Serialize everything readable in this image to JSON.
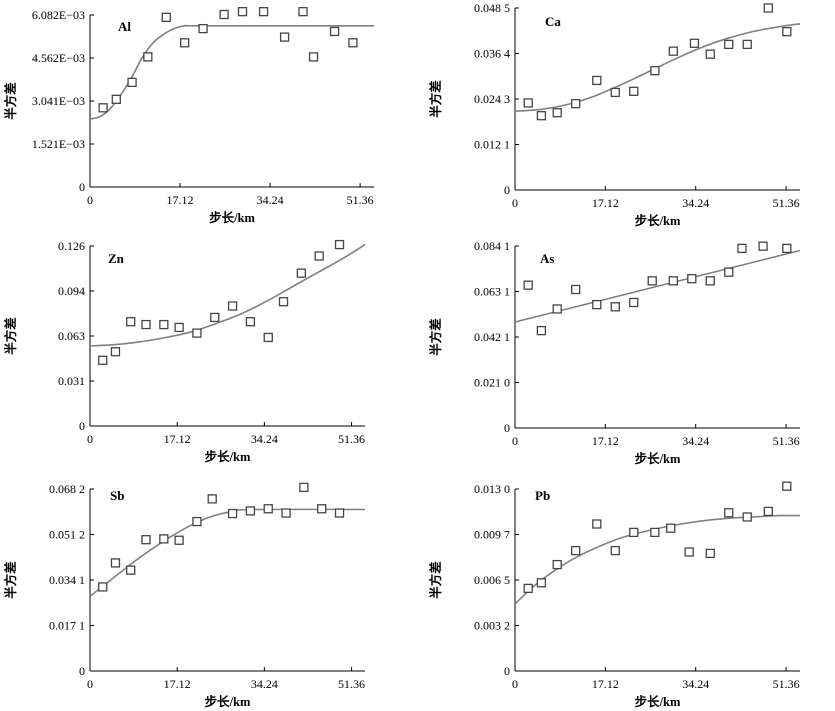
{
  "chart_data": [
    {
      "type": "scatter",
      "label": "Al",
      "xlabel": "步长/km",
      "ylabel": "半方差",
      "xticks": [
        "0",
        "17.12",
        "34.24",
        "51.36"
      ],
      "yticks": [
        "0",
        "1.521E−03",
        "3.041E−03",
        "4.562E−03",
        "6.082E−03"
      ],
      "xlim": [
        0,
        54
      ],
      "ylim": [
        0,
        0.006082
      ],
      "points": [
        [
          2.5,
          0.0028
        ],
        [
          5,
          0.0031
        ],
        [
          8,
          0.0037
        ],
        [
          11,
          0.0046
        ],
        [
          14.5,
          0.006
        ],
        [
          18,
          0.0051
        ],
        [
          21.5,
          0.0056
        ],
        [
          25.5,
          0.0061
        ],
        [
          29,
          0.0062
        ],
        [
          33,
          0.0062
        ],
        [
          37,
          0.0053
        ],
        [
          40.5,
          0.0062
        ],
        [
          42.5,
          0.0046
        ],
        [
          46.5,
          0.0055
        ],
        [
          50,
          0.0051
        ]
      ],
      "fit": [
        [
          0,
          0.0024
        ],
        [
          2,
          0.0025
        ],
        [
          4,
          0.0028
        ],
        [
          6,
          0.0033
        ],
        [
          8,
          0.0039
        ],
        [
          10,
          0.0046
        ],
        [
          12,
          0.0051
        ],
        [
          14,
          0.0054
        ],
        [
          16,
          0.0056
        ],
        [
          18,
          0.0057
        ],
        [
          22,
          0.0057
        ],
        [
          54,
          0.0057
        ]
      ]
    },
    {
      "type": "scatter",
      "label": "Ca",
      "xlabel": "步长/km",
      "ylabel": "半方差",
      "xticks": [
        "0",
        "17.12",
        "34.24",
        "51.36"
      ],
      "yticks": [
        "0",
        "0.012 1",
        "0.024 3",
        "0.036 4",
        "0.048 5"
      ],
      "xlim": [
        0,
        54
      ],
      "ylim": [
        0,
        0.0485
      ],
      "points": [
        [
          2.5,
          0.0232
        ],
        [
          5,
          0.0198
        ],
        [
          8,
          0.0206
        ],
        [
          11.5,
          0.023
        ],
        [
          15.5,
          0.0292
        ],
        [
          19,
          0.026
        ],
        [
          22.5,
          0.0263
        ],
        [
          26.5,
          0.0318
        ],
        [
          30,
          0.037
        ],
        [
          34,
          0.0391
        ],
        [
          37,
          0.0362
        ],
        [
          40.5,
          0.0388
        ],
        [
          44,
          0.0388
        ],
        [
          48,
          0.0485
        ],
        [
          51.5,
          0.0422
        ]
      ],
      "fit": [
        [
          0,
          0.021
        ],
        [
          5,
          0.0215
        ],
        [
          10,
          0.0228
        ],
        [
          15,
          0.025
        ],
        [
          20,
          0.028
        ],
        [
          25,
          0.0313
        ],
        [
          30,
          0.0347
        ],
        [
          35,
          0.0378
        ],
        [
          40,
          0.0403
        ],
        [
          45,
          0.0422
        ],
        [
          50,
          0.0435
        ],
        [
          54,
          0.0443
        ]
      ]
    },
    {
      "type": "scatter",
      "label": "Zn",
      "xlabel": "步长/km",
      "ylabel": "半方差",
      "xticks": [
        "0",
        "17.12",
        "34.24",
        "51.36"
      ],
      "yticks": [
        "0",
        "0.031",
        "0.063",
        "0.094",
        "0.126"
      ],
      "xlim": [
        0,
        54
      ],
      "ylim": [
        0,
        0.126
      ],
      "points": [
        [
          2.5,
          0.046
        ],
        [
          5,
          0.052
        ],
        [
          8,
          0.073
        ],
        [
          11,
          0.071
        ],
        [
          14.5,
          0.071
        ],
        [
          17.5,
          0.069
        ],
        [
          21,
          0.065
        ],
        [
          24.5,
          0.076
        ],
        [
          28,
          0.084
        ],
        [
          31.5,
          0.073
        ],
        [
          35,
          0.062
        ],
        [
          38,
          0.087
        ],
        [
          41.5,
          0.107
        ],
        [
          45,
          0.119
        ],
        [
          49,
          0.127
        ]
      ],
      "fit": [
        [
          0,
          0.056
        ],
        [
          5,
          0.057
        ],
        [
          10,
          0.059
        ],
        [
          15,
          0.062
        ],
        [
          20,
          0.066
        ],
        [
          25,
          0.072
        ],
        [
          30,
          0.079
        ],
        [
          35,
          0.088
        ],
        [
          40,
          0.098
        ],
        [
          45,
          0.108
        ],
        [
          50,
          0.118
        ],
        [
          54,
          0.127
        ]
      ]
    },
    {
      "type": "scatter",
      "label": "As",
      "xlabel": "步长/km",
      "ylabel": "半方差",
      "xticks": [
        "0",
        "17.12",
        "34.24",
        "51.36"
      ],
      "yticks": [
        "0",
        "0.021 0",
        "0.042 1",
        "0.063 1",
        "0.084 1"
      ],
      "xlim": [
        0,
        54
      ],
      "ylim": [
        0,
        0.0841
      ],
      "points": [
        [
          2.5,
          0.066
        ],
        [
          5,
          0.045
        ],
        [
          8,
          0.055
        ],
        [
          11.5,
          0.064
        ],
        [
          15.5,
          0.057
        ],
        [
          19,
          0.056
        ],
        [
          22.5,
          0.058
        ],
        [
          26,
          0.068
        ],
        [
          30,
          0.068
        ],
        [
          33.5,
          0.069
        ],
        [
          37,
          0.068
        ],
        [
          40.5,
          0.072
        ],
        [
          43,
          0.083
        ],
        [
          47,
          0.084
        ],
        [
          51.5,
          0.083
        ]
      ],
      "fit": [
        [
          0,
          0.049
        ],
        [
          54,
          0.082
        ]
      ]
    },
    {
      "type": "scatter",
      "label": "Sb",
      "xlabel": "步长/km",
      "ylabel": "半方差",
      "xticks": [
        "0",
        "17.12",
        "34.24",
        "51.36"
      ],
      "yticks": [
        "0",
        "0.017 1",
        "0.034 1",
        "0.051 2",
        "0.068 2"
      ],
      "xlim": [
        0,
        54
      ],
      "ylim": [
        0,
        0.0682
      ],
      "points": [
        [
          2.5,
          0.0315
        ],
        [
          5,
          0.0405
        ],
        [
          8,
          0.0378
        ],
        [
          11,
          0.0492
        ],
        [
          14.5,
          0.0495
        ],
        [
          17.5,
          0.049
        ],
        [
          21,
          0.056
        ],
        [
          24,
          0.0645
        ],
        [
          28,
          0.059
        ],
        [
          31.5,
          0.06
        ],
        [
          35,
          0.0608
        ],
        [
          38.5,
          0.0592
        ],
        [
          42,
          0.0688
        ],
        [
          45.5,
          0.0608
        ],
        [
          49,
          0.0592
        ]
      ],
      "fit": [
        [
          0,
          0.028
        ],
        [
          4,
          0.034
        ],
        [
          8,
          0.04
        ],
        [
          12,
          0.0455
        ],
        [
          16,
          0.0505
        ],
        [
          20,
          0.0548
        ],
        [
          24,
          0.058
        ],
        [
          28,
          0.0598
        ],
        [
          32,
          0.0605
        ],
        [
          54,
          0.0605
        ]
      ]
    },
    {
      "type": "scatter",
      "label": "Pb",
      "xlabel": "步长/km",
      "ylabel": "半方差",
      "xticks": [
        "0",
        "17.12",
        "34.24",
        "51.36"
      ],
      "yticks": [
        "0",
        "0.003 2",
        "0.006 5",
        "0.009 7",
        "0.013 0"
      ],
      "xlim": [
        0,
        54
      ],
      "ylim": [
        0,
        0.013
      ],
      "points": [
        [
          2.5,
          0.0059
        ],
        [
          5,
          0.0063
        ],
        [
          8,
          0.0076
        ],
        [
          11.5,
          0.0086
        ],
        [
          15.5,
          0.0105
        ],
        [
          19,
          0.0086
        ],
        [
          22.5,
          0.0099
        ],
        [
          26.5,
          0.0099
        ],
        [
          29.5,
          0.0102
        ],
        [
          33,
          0.0085
        ],
        [
          37,
          0.0084
        ],
        [
          40.5,
          0.0113
        ],
        [
          44,
          0.011
        ],
        [
          48,
          0.0114
        ],
        [
          51.5,
          0.0132
        ]
      ],
      "fit": [
        [
          0,
          0.0048
        ],
        [
          4,
          0.0062
        ],
        [
          8,
          0.0073
        ],
        [
          12,
          0.0082
        ],
        [
          16,
          0.0089
        ],
        [
          20,
          0.0095
        ],
        [
          25,
          0.01
        ],
        [
          30,
          0.0104
        ],
        [
          35,
          0.0107
        ],
        [
          40,
          0.0109
        ],
        [
          45,
          0.011
        ],
        [
          50,
          0.0111
        ],
        [
          54,
          0.0111
        ]
      ]
    }
  ]
}
